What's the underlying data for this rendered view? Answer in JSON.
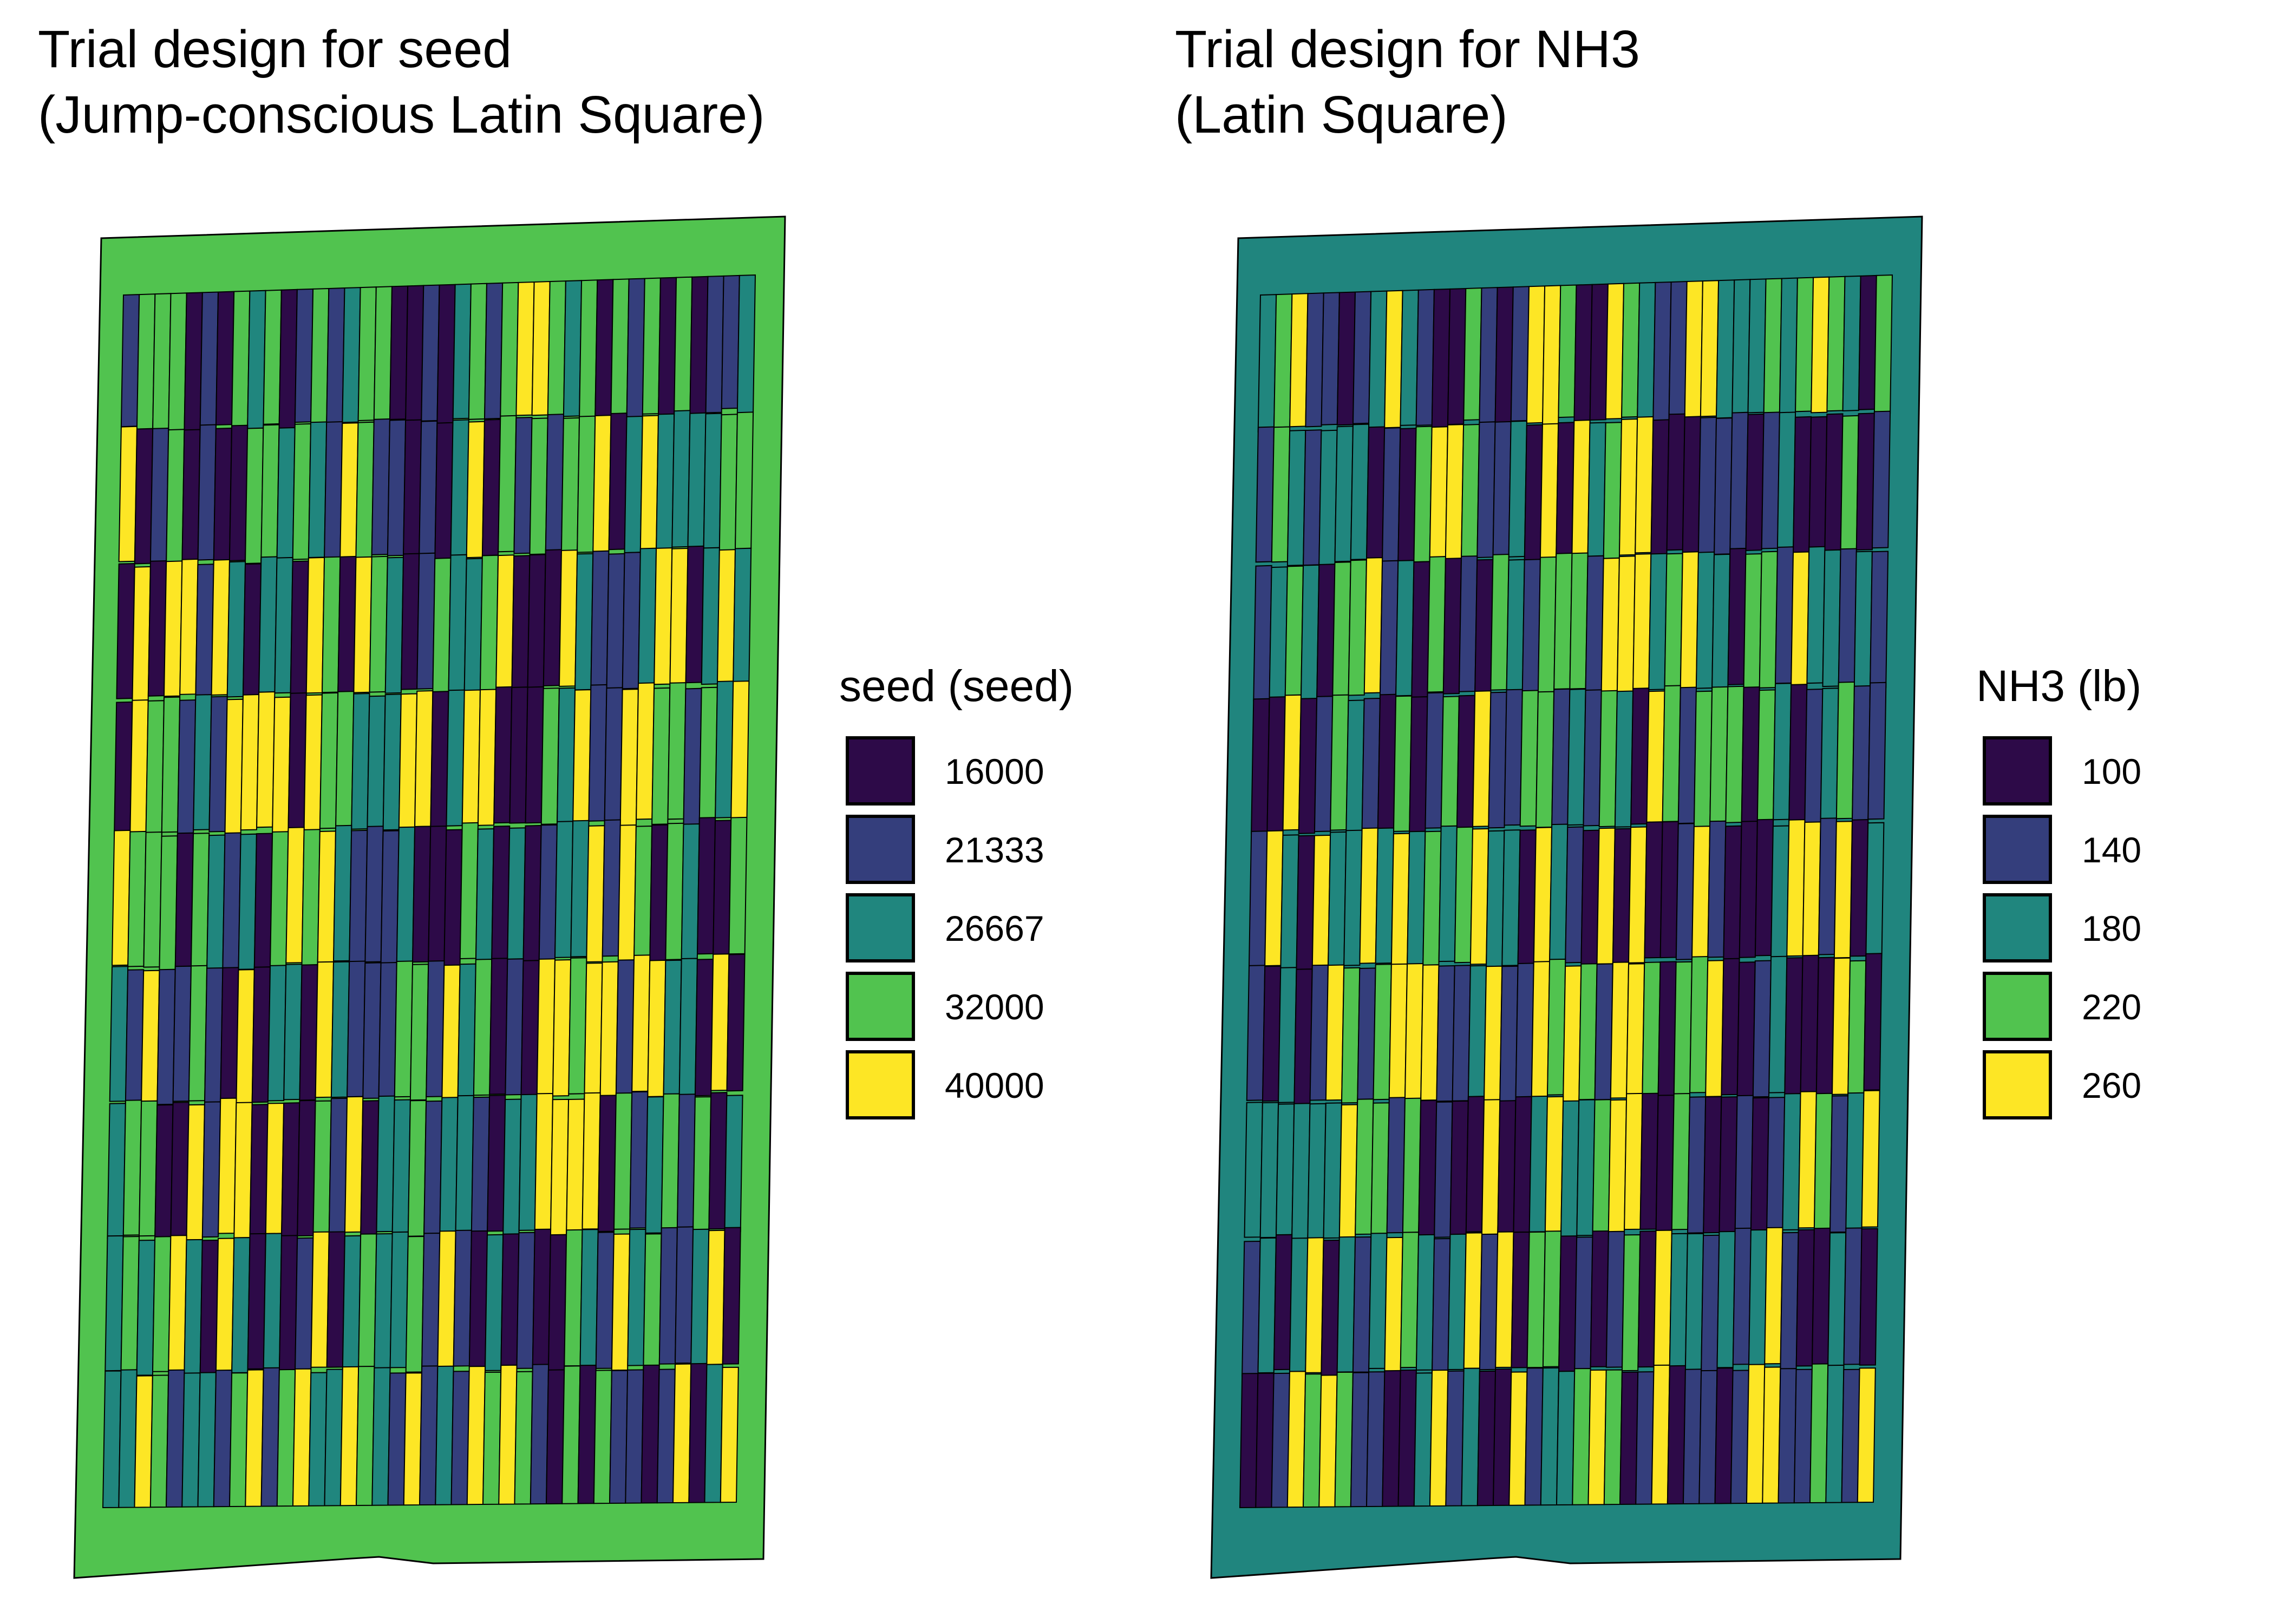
{
  "maps": [
    {
      "title_line1": "Trial design for seed",
      "title_line2": "(Jump-conscious Latin Square)",
      "legend_title": "seed (seed)",
      "headland_color": "#51C34F",
      "legend": [
        {
          "label": "16000",
          "color": "#2D0A48"
        },
        {
          "label": "21333",
          "color": "#343E7C"
        },
        {
          "label": "26667",
          "color": "#20867E"
        },
        {
          "label": "32000",
          "color": "#51C34F"
        },
        {
          "label": "40000",
          "color": "#FDE625"
        }
      ]
    },
    {
      "title_line1": "Trial design for NH3",
      "title_line2": "(Latin Square)",
      "legend_title": "NH3 (lb)",
      "headland_color": "#20857E",
      "legend": [
        {
          "label": "100",
          "color": "#2D0A48"
        },
        {
          "label": "140",
          "color": "#343E7C"
        },
        {
          "label": "180",
          "color": "#20867E"
        },
        {
          "label": "220",
          "color": "#51C34F"
        },
        {
          "label": "260",
          "color": "#FDE625"
        }
      ]
    }
  ]
}
